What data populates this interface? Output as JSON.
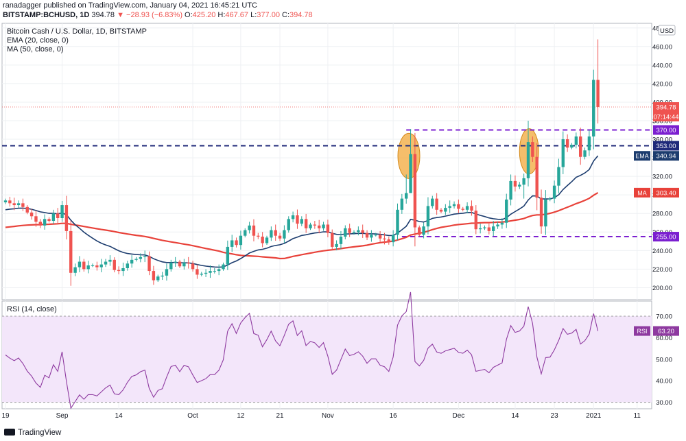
{
  "header": {
    "publisher_line": "ranadagger published on TradingView.com, January 04, 2021 16:45:21 UTC",
    "symbol": "BITSTAMP:BCHUSD, 1D",
    "last": "394.78",
    "change_arrow": "▼",
    "change": "−28.93 (−6.83%)",
    "o_label": "O:",
    "o_value": "425.20",
    "h_label": "H:",
    "h_value": "467.67",
    "l_label": "L:",
    "l_value": "377.00",
    "c_label": "C:",
    "c_value": "394.78"
  },
  "legend": {
    "title": "Bitcoin Cash / U.S. Dollar, 1D, BITSTAMP",
    "ema": "EMA (20, close, 0)",
    "ma": "MA (50, close, 0)",
    "rsi": "RSI (14, close)",
    "currency": "USD"
  },
  "footer": {
    "brand": "TradingView"
  },
  "colors": {
    "up": "#26a69a",
    "down": "#ef5350",
    "ema": "#1c3c6e",
    "ma": "#e8423a",
    "level": "#7b1fd0",
    "rsi": "#8e3aa0",
    "rsi_band": "#f3e6fa",
    "highlight": "#f2a83a"
  },
  "chart_data": [
    {
      "type": "candlestick",
      "title": "Bitcoin Cash / U.S. Dollar, 1D, BITSTAMP",
      "ylim": [
        187,
        485
      ],
      "y_ticks": [
        "200.00",
        "220.00",
        "240.00",
        "260.00",
        "280.00",
        "300.00",
        "320.00",
        "340.00",
        "360.00",
        "380.00",
        "400.00",
        "420.00",
        "440.00",
        "460.00",
        "480.00"
      ],
      "x_ticks": [
        {
          "label": "19",
          "day": 0
        },
        {
          "label": "Sep",
          "day": 13
        },
        {
          "label": "14",
          "day": 26
        },
        {
          "label": "Oct",
          "day": 43
        },
        {
          "label": "12",
          "day": 54
        },
        {
          "label": "21",
          "day": 63
        },
        {
          "label": "Nov",
          "day": 74
        },
        {
          "label": "16",
          "day": 89
        },
        {
          "label": "Dec",
          "day": 104
        },
        {
          "label": "14",
          "day": 117
        },
        {
          "label": "23",
          "day": 126
        },
        {
          "label": "2021",
          "day": 135
        },
        {
          "label": "11",
          "day": 145
        }
      ],
      "close": [
        294,
        291,
        289,
        291,
        287,
        281,
        277,
        271,
        267,
        274,
        272,
        280,
        275,
        289,
        261,
        216,
        222,
        228,
        220,
        224,
        224,
        222,
        225,
        228,
        230,
        219,
        218,
        221,
        226,
        230,
        231,
        233,
        234,
        218,
        208,
        212,
        213,
        220,
        227,
        228,
        223,
        227,
        226,
        220,
        214,
        215,
        216,
        218,
        218,
        220,
        225,
        244,
        251,
        246,
        256,
        262,
        267,
        256,
        255,
        248,
        254,
        262,
        256,
        253,
        262,
        274,
        278,
        269,
        274,
        264,
        268,
        267,
        264,
        268,
        259,
        244,
        247,
        255,
        264,
        259,
        260,
        262,
        259,
        254,
        257,
        257,
        253,
        252,
        249,
        257,
        284,
        296,
        302,
        344,
        265,
        257,
        266,
        288,
        296,
        284,
        282,
        286,
        288,
        290,
        285,
        284,
        288,
        283,
        263,
        264,
        265,
        261,
        266,
        268,
        270,
        295,
        315,
        309,
        311,
        318,
        357,
        341,
        297,
        266,
        295,
        296,
        310,
        330,
        360,
        351,
        354,
        363,
        341,
        348,
        363,
        424,
        394.78
      ],
      "volatility_bands": [
        {
          "label": "370.00",
          "value": 370
        },
        {
          "label": "353.00",
          "value": 353
        },
        {
          "label": "255.00",
          "value": 255
        }
      ],
      "last_price_label": "394.78",
      "countdown_label": "07:14:44",
      "ema": {
        "name": "EMA",
        "value_label": "340.94"
      },
      "ma": {
        "name": "MA",
        "value_label": "303.40"
      }
    },
    {
      "type": "line",
      "title": "RSI (14, close)",
      "ylim": [
        27,
        77
      ],
      "y_ticks": [
        "30.00",
        "40.00",
        "50.00",
        "60.00",
        "70.00"
      ],
      "band": [
        30,
        70
      ],
      "series": [
        {
          "name": "RSI",
          "value_label": "63.20"
        }
      ]
    }
  ]
}
